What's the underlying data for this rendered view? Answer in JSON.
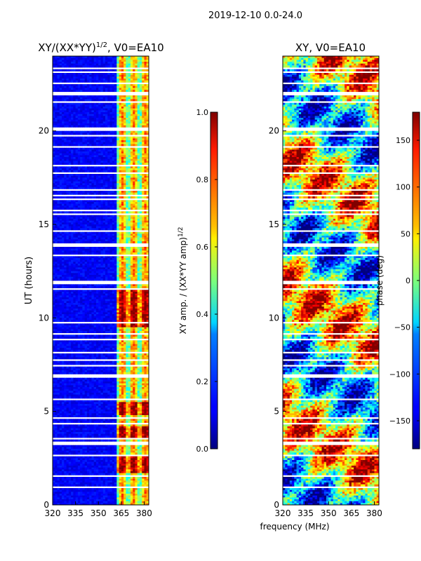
{
  "suptitle": "2019-12-10 0.0-24.0",
  "colors": {
    "white": "#ffffff",
    "black": "#000000"
  },
  "chart_data": [
    {
      "type": "heatmap",
      "title": "XY/(XX*YY)",
      "title_sup": "1/2",
      "title_suffix": ", V0=EA10",
      "xlabel": "",
      "ylabel": "UT (hours)",
      "xlim": [
        320,
        383
      ],
      "ylim": [
        0,
        24
      ],
      "xticks": [
        320,
        335,
        350,
        365,
        380
      ],
      "yticks": [
        0,
        5,
        10,
        15,
        20
      ],
      "colorbar": {
        "label": "XY amp. / (XX*YY amp)",
        "label_sup": "1/2",
        "range": [
          0.0,
          1.0
        ],
        "ticks": [
          "0.0",
          "0.2",
          "0.4",
          "0.6",
          "0.8",
          "1.0"
        ]
      },
      "description_free": true
    },
    {
      "type": "heatmap",
      "title": "XY, V0=EA10",
      "xlabel": "frequency (MHz)",
      "ylabel": "",
      "xlim": [
        320,
        383
      ],
      "ylim": [
        0,
        24
      ],
      "xticks": [
        320,
        335,
        350,
        365,
        380
      ],
      "yticks": [
        0,
        5,
        10,
        15,
        20
      ],
      "colorbar": {
        "label": "phase (deg)",
        "range": [
          -180,
          180
        ],
        "ticks": [
          "−150",
          "−100",
          "−50",
          "0",
          "50",
          "100",
          "150"
        ]
      }
    }
  ]
}
